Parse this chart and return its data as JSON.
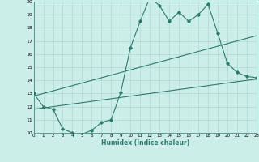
{
  "xlabel": "Humidex (Indice chaleur)",
  "xlim": [
    0,
    23
  ],
  "ylim": [
    10,
    20
  ],
  "yticks": [
    10,
    11,
    12,
    13,
    14,
    15,
    16,
    17,
    18,
    19,
    20
  ],
  "xticks": [
    0,
    1,
    2,
    3,
    4,
    5,
    6,
    7,
    8,
    9,
    10,
    11,
    12,
    13,
    14,
    15,
    16,
    17,
    18,
    19,
    20,
    21,
    22,
    23
  ],
  "line_color": "#2d7a6e",
  "bg_color": "#cceee8",
  "grid_color": "#afd8d0",
  "line1_x": [
    0,
    1,
    2,
    3,
    4,
    5,
    6,
    7,
    8,
    9,
    10,
    11,
    12,
    13,
    14,
    15,
    16,
    17,
    18,
    19,
    20,
    21,
    22,
    23
  ],
  "line1_y": [
    13.0,
    12.0,
    11.8,
    10.3,
    10.0,
    9.9,
    10.2,
    10.8,
    11.0,
    13.1,
    16.5,
    18.5,
    20.3,
    19.7,
    18.5,
    19.2,
    18.5,
    19.0,
    19.8,
    17.6,
    15.3,
    14.6,
    14.3,
    14.2
  ],
  "line2_x": [
    0,
    23
  ],
  "line2_y": [
    12.8,
    17.4
  ],
  "line3_x": [
    0,
    23
  ],
  "line3_y": [
    11.8,
    14.1
  ]
}
